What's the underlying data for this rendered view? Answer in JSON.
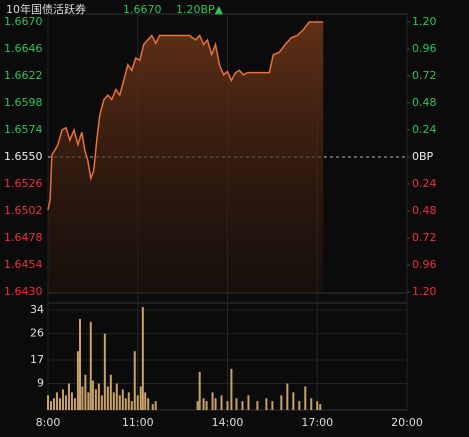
{
  "header": {
    "name": "10年国债活跃券",
    "price_label": "1.6670",
    "change_label": "1.20BP▲"
  },
  "chart_data": [
    {
      "type": "line",
      "color": "#e8703a",
      "up_color": "#2fc25b",
      "down_color": "#f0303c",
      "xlim": [
        8,
        20
      ],
      "ylim": [
        1.643,
        1.667
      ],
      "y2lim": [
        -1.2,
        1.2
      ],
      "yticks": [
        {
          "value": 1.667,
          "label": "1.6670"
        },
        {
          "value": 1.6646,
          "label": "1.6646"
        },
        {
          "value": 1.6622,
          "label": "1.6622"
        },
        {
          "value": 1.6598,
          "label": "1.6598"
        },
        {
          "value": 1.6574,
          "label": "1.6574"
        },
        {
          "value": 1.655,
          "label": "1.6550"
        },
        {
          "value": 1.6526,
          "label": "1.6526"
        },
        {
          "value": 1.6502,
          "label": "1.6502"
        },
        {
          "value": 1.6478,
          "label": "1.6478"
        },
        {
          "value": 1.6454,
          "label": "1.6454"
        },
        {
          "value": 1.643,
          "label": "1.6430"
        }
      ],
      "y2ticks": [
        {
          "value": 1.2,
          "label": "1.20"
        },
        0.96,
        0.72,
        0.48,
        0.24,
        {
          "value": 0,
          "label": "0BP"
        },
        {
          "value": -0.24,
          "label": "0.24"
        },
        {
          "value": -0.48,
          "label": "0.48"
        },
        {
          "value": -0.72,
          "label": "0.72"
        },
        {
          "value": -0.96,
          "label": "0.96"
        },
        {
          "value": -1.2,
          "label": "1.20"
        }
      ],
      "x": [
        8.0,
        8.07,
        8.13,
        8.23,
        8.33,
        8.47,
        8.6,
        8.73,
        8.87,
        9.0,
        9.13,
        9.23,
        9.33,
        9.43,
        9.53,
        9.63,
        9.73,
        9.87,
        10.0,
        10.13,
        10.27,
        10.4,
        10.53,
        10.67,
        10.8,
        10.93,
        11.07,
        11.2,
        11.33,
        11.47,
        11.6,
        11.73,
        12.73,
        12.93,
        13.07,
        13.2,
        13.33,
        13.47,
        13.6,
        13.73,
        13.87,
        14.0,
        14.13,
        14.27,
        14.4,
        14.53,
        14.67,
        15.4,
        15.53,
        15.73,
        15.93,
        16.13,
        16.33,
        16.53,
        16.73,
        17.2
      ],
      "values": [
        1.6503,
        1.6512,
        1.6552,
        1.6556,
        1.6561,
        1.6574,
        1.6576,
        1.6565,
        1.6574,
        1.6561,
        1.6572,
        1.6556,
        1.6547,
        1.6531,
        1.6538,
        1.6565,
        1.6587,
        1.6601,
        1.6605,
        1.6601,
        1.661,
        1.6605,
        1.6618,
        1.6632,
        1.6627,
        1.6638,
        1.6636,
        1.665,
        1.6654,
        1.6658,
        1.6651,
        1.6658,
        1.6658,
        1.6654,
        1.6658,
        1.665,
        1.6654,
        1.6641,
        1.665,
        1.6632,
        1.6623,
        1.6626,
        1.6618,
        1.6625,
        1.6627,
        1.6623,
        1.6625,
        1.6625,
        1.6641,
        1.6643,
        1.665,
        1.6656,
        1.6658,
        1.6663,
        1.667,
        1.667
      ]
    },
    {
      "type": "bar",
      "color": "#c9a26b",
      "xlim": [
        8,
        20
      ],
      "ylim": [
        0,
        36.4
      ],
      "yticks": [
        9,
        17,
        26,
        34
      ],
      "xticks": [
        {
          "value": 8,
          "label": "8:00"
        },
        {
          "value": 11,
          "label": "11:00"
        },
        {
          "value": 14,
          "label": "14:00"
        },
        {
          "value": 17,
          "label": "17:00"
        },
        {
          "value": 20,
          "label": "20:00"
        }
      ],
      "x": [
        8.0,
        8.1,
        8.2,
        8.3,
        8.4,
        8.5,
        8.6,
        8.7,
        8.8,
        8.9,
        9.0,
        9.07,
        9.15,
        9.25,
        9.35,
        9.43,
        9.5,
        9.6,
        9.7,
        9.8,
        9.9,
        10.0,
        10.1,
        10.2,
        10.3,
        10.4,
        10.5,
        10.6,
        10.7,
        10.8,
        10.9,
        11.0,
        11.1,
        11.17,
        11.25,
        11.35,
        11.5,
        11.6,
        13.0,
        13.07,
        13.2,
        13.3,
        13.5,
        13.6,
        13.8,
        14.0,
        14.13,
        14.3,
        14.5,
        14.7,
        15.0,
        15.3,
        15.5,
        15.8,
        16.0,
        16.2,
        16.4,
        16.6,
        16.8,
        17.0,
        17.1
      ],
      "values": [
        5,
        3,
        4,
        6,
        4,
        7,
        5,
        9,
        6,
        4,
        20,
        31,
        8,
        12,
        6,
        30,
        10,
        7,
        9,
        5,
        26,
        8,
        12,
        6,
        9,
        5,
        7,
        4,
        6,
        3,
        20,
        5,
        8,
        35,
        6,
        4,
        2,
        3,
        3,
        13,
        4,
        3,
        6,
        4,
        5,
        3,
        14,
        4,
        3,
        5,
        3,
        4,
        3,
        5,
        9,
        6,
        3,
        8,
        4,
        3,
        2
      ]
    }
  ]
}
